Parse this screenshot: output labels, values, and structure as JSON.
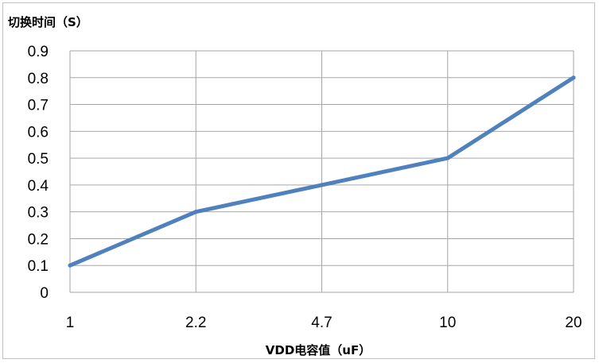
{
  "chart_data": {
    "type": "line",
    "title": "",
    "ylabel": "切换时间（S）",
    "xlabel": "VDD电容值（uF）",
    "categories": [
      "1",
      "2.2",
      "4.7",
      "10",
      "20"
    ],
    "series": [
      {
        "values": [
          0.1,
          0.3,
          0.4,
          0.5,
          0.8
        ]
      }
    ],
    "ylim": [
      0,
      0.9
    ],
    "yticks": [
      "0",
      "0.1",
      "0.2",
      "0.3",
      "0.4",
      "0.5",
      "0.6",
      "0.7",
      "0.8",
      "0.9"
    ],
    "grid": true,
    "line_color": "#4f81bd",
    "grid_color": "#a6a6a6"
  }
}
